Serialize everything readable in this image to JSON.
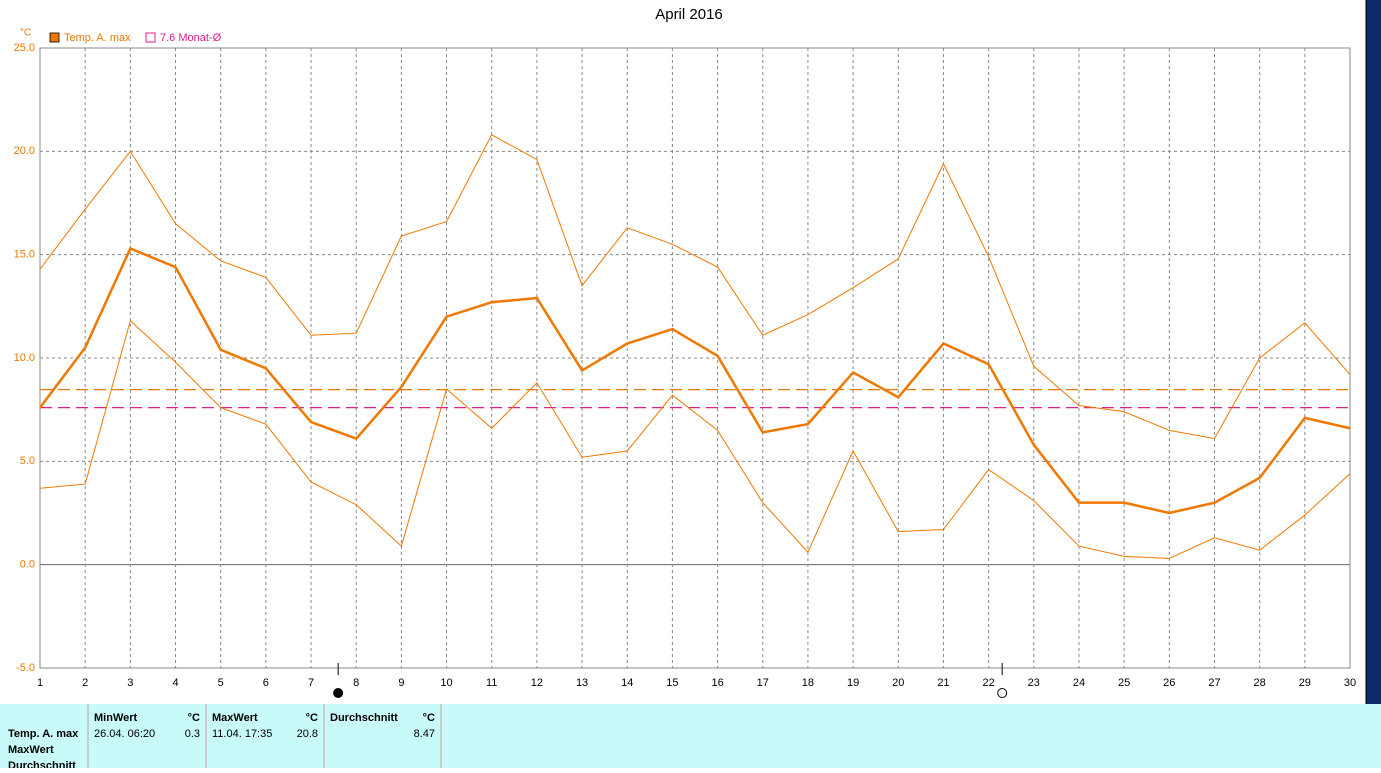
{
  "chart_data": {
    "type": "line",
    "title": "April 2016",
    "y_unit": "°C",
    "x": [
      1,
      2,
      3,
      4,
      5,
      6,
      7,
      8,
      9,
      10,
      11,
      12,
      13,
      14,
      15,
      16,
      17,
      18,
      19,
      20,
      21,
      22,
      23,
      24,
      25,
      26,
      27,
      28,
      29,
      30
    ],
    "xlim": [
      1,
      30
    ],
    "xticks": [
      1,
      2,
      3,
      4,
      5,
      6,
      7,
      8,
      9,
      10,
      11,
      12,
      13,
      14,
      15,
      16,
      17,
      18,
      19,
      20,
      21,
      22,
      23,
      24,
      25,
      26,
      27,
      28,
      29,
      30
    ],
    "ylim": [
      -5,
      25
    ],
    "yticks": [
      {
        "value": -5,
        "label": "-5.0"
      },
      {
        "value": 0,
        "label": "0.0"
      },
      {
        "value": 5,
        "label": "5.0"
      },
      {
        "value": 10,
        "label": "10.0"
      },
      {
        "value": 15,
        "label": "15.0"
      },
      {
        "value": 20,
        "label": "20.0"
      },
      {
        "value": 25,
        "label": "25.0"
      }
    ],
    "grid": true,
    "series": [
      {
        "name": "Temp. A. max",
        "color": "#f07800",
        "width": 2.5,
        "values": [
          7.6,
          10.5,
          15.3,
          14.4,
          10.4,
          9.5,
          6.9,
          6.1,
          8.6,
          12.0,
          12.7,
          12.9,
          9.4,
          10.7,
          11.4,
          10.1,
          6.4,
          6.8,
          9.3,
          8.1,
          10.7,
          9.7,
          5.8,
          3.0,
          3.0,
          2.5,
          3.0,
          4.2,
          7.1,
          6.6
        ]
      },
      {
        "color": "#f07800",
        "width": 1,
        "values": [
          14.3,
          17.2,
          20.0,
          16.5,
          14.7,
          13.9,
          11.1,
          11.2,
          15.9,
          16.6,
          20.8,
          19.6,
          13.5,
          16.3,
          15.5,
          14.4,
          11.1,
          12.1,
          13.4,
          14.8,
          19.4,
          14.9,
          9.6,
          7.7,
          7.4,
          6.5,
          6.1,
          10.0,
          11.7,
          9.2
        ]
      },
      {
        "color": "#f07800",
        "width": 1,
        "values": [
          3.7,
          3.9,
          11.8,
          9.8,
          7.6,
          6.8,
          4.0,
          2.9,
          0.9,
          8.5,
          6.6,
          8.8,
          5.2,
          5.5,
          8.2,
          6.5,
          3.0,
          0.6,
          5.5,
          1.6,
          1.7,
          4.6,
          3.1,
          0.9,
          0.4,
          0.3,
          1.3,
          0.7,
          2.4,
          4.4
        ]
      }
    ],
    "hlines": [
      {
        "value": 8.47,
        "color": "#f07800"
      },
      {
        "value": 7.6,
        "color": "#e0208a",
        "name": "7.6 Monat-Ø"
      }
    ],
    "markers": [
      {
        "x": 7.6,
        "fill": "#000000"
      },
      {
        "x": 22.3,
        "fill": "#ffffff"
      }
    ]
  },
  "table": {
    "row_labels": [
      "Temp. A. max",
      "MaxWert",
      "Durchschnitt"
    ],
    "columns": [
      {
        "header": "MinWert",
        "unit": "°C",
        "time": "26.04. 06:20",
        "value": 0.3
      },
      {
        "header": "MaxWert",
        "unit": "°C",
        "time": "11.04. 17:35",
        "value": 20.8
      },
      {
        "header": "Durchschnitt",
        "unit": "°C",
        "value": 8.47
      }
    ]
  }
}
